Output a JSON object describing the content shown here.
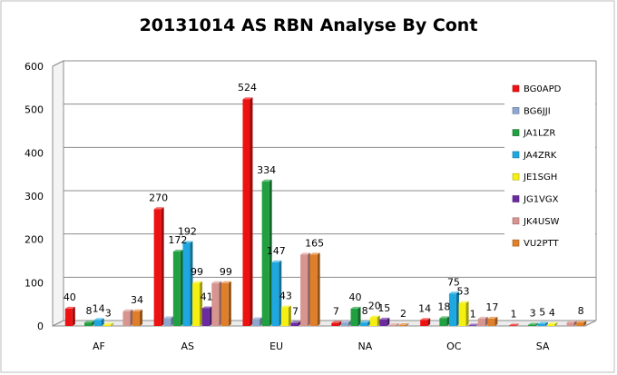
{
  "chart_data": {
    "type": "bar",
    "title": "20131014  AS RBN Analyse By Cont",
    "categories": [
      "AF",
      "AS",
      "EU",
      "NA",
      "OC",
      "SA"
    ],
    "ylim": [
      0,
      600
    ],
    "yticks": [
      0,
      100,
      200,
      300,
      400,
      500,
      600
    ],
    "grid": true,
    "legend_position": "right",
    "series": [
      {
        "name": "BG0APD",
        "color": "#ee1111",
        "values": [
          40,
          270,
          524,
          7,
          14,
          1
        ],
        "labels": [
          "40",
          "270",
          "524",
          "7",
          "14",
          "1"
        ]
      },
      {
        "name": "BG6JJI",
        "color": "#8ea7cf",
        "values": [
          0,
          18,
          16,
          8,
          0,
          0
        ],
        "labels": [
          "",
          "",
          "",
          "",
          "",
          ""
        ]
      },
      {
        "name": "JA1LZR",
        "color": "#20a040",
        "values": [
          8,
          172,
          334,
          40,
          18,
          3
        ],
        "labels": [
          "8",
          "172",
          "334",
          "40",
          "18",
          "3"
        ]
      },
      {
        "name": "JA4ZRK",
        "color": "#1fa8e0",
        "values": [
          14,
          192,
          147,
          8,
          75,
          5
        ],
        "labels": [
          "14",
          "192",
          "147",
          "8",
          "75",
          "5"
        ]
      },
      {
        "name": "JE1SGH",
        "color": "#f5f011",
        "values": [
          3,
          99,
          43,
          20,
          53,
          4
        ],
        "labels": [
          "3",
          "99",
          "43",
          "20",
          "53",
          "4"
        ]
      },
      {
        "name": "JG1VGX",
        "color": "#6a2aa0",
        "values": [
          0,
          41,
          7,
          15,
          1,
          0
        ],
        "labels": [
          "",
          "41",
          "7",
          "15",
          "1",
          ""
        ]
      },
      {
        "name": "JK4USW",
        "color": "#d8958f",
        "values": [
          34,
          99,
          165,
          2,
          17,
          8
        ],
        "labels": [
          "",
          "",
          "",
          "",
          "",
          ""
        ]
      },
      {
        "name": "VU2PTT",
        "color": "#e07f2a",
        "values": [
          34,
          99,
          165,
          2,
          17,
          8
        ],
        "labels": [
          "34",
          "99",
          "165",
          "2",
          "17",
          "8"
        ]
      }
    ]
  }
}
